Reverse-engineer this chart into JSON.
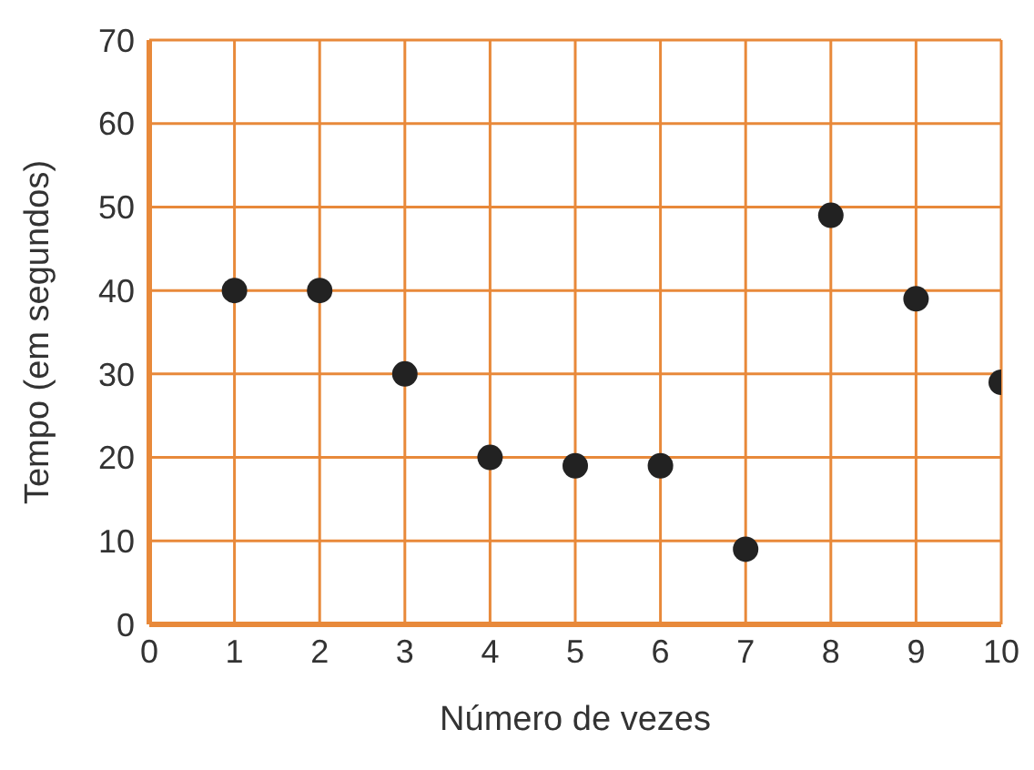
{
  "chart_data": {
    "type": "scatter",
    "xlabel": "Número de vezes",
    "ylabel": "Tempo (em segundos)",
    "x": [
      1,
      2,
      3,
      4,
      5,
      6,
      7,
      8,
      9,
      10
    ],
    "series": [
      {
        "color": "#222222",
        "values": [
          40,
          40,
          30,
          20,
          19,
          19,
          9,
          49,
          39,
          29
        ]
      }
    ],
    "xlim": [
      0,
      10
    ],
    "xticks": [
      0,
      1,
      2,
      3,
      4,
      5,
      6,
      7,
      8,
      9,
      10
    ],
    "ylim": [
      0,
      70
    ],
    "yticks": [
      0,
      10,
      20,
      30,
      40,
      50,
      60,
      70
    ],
    "grid": true,
    "marker": "circle",
    "legend": false
  }
}
